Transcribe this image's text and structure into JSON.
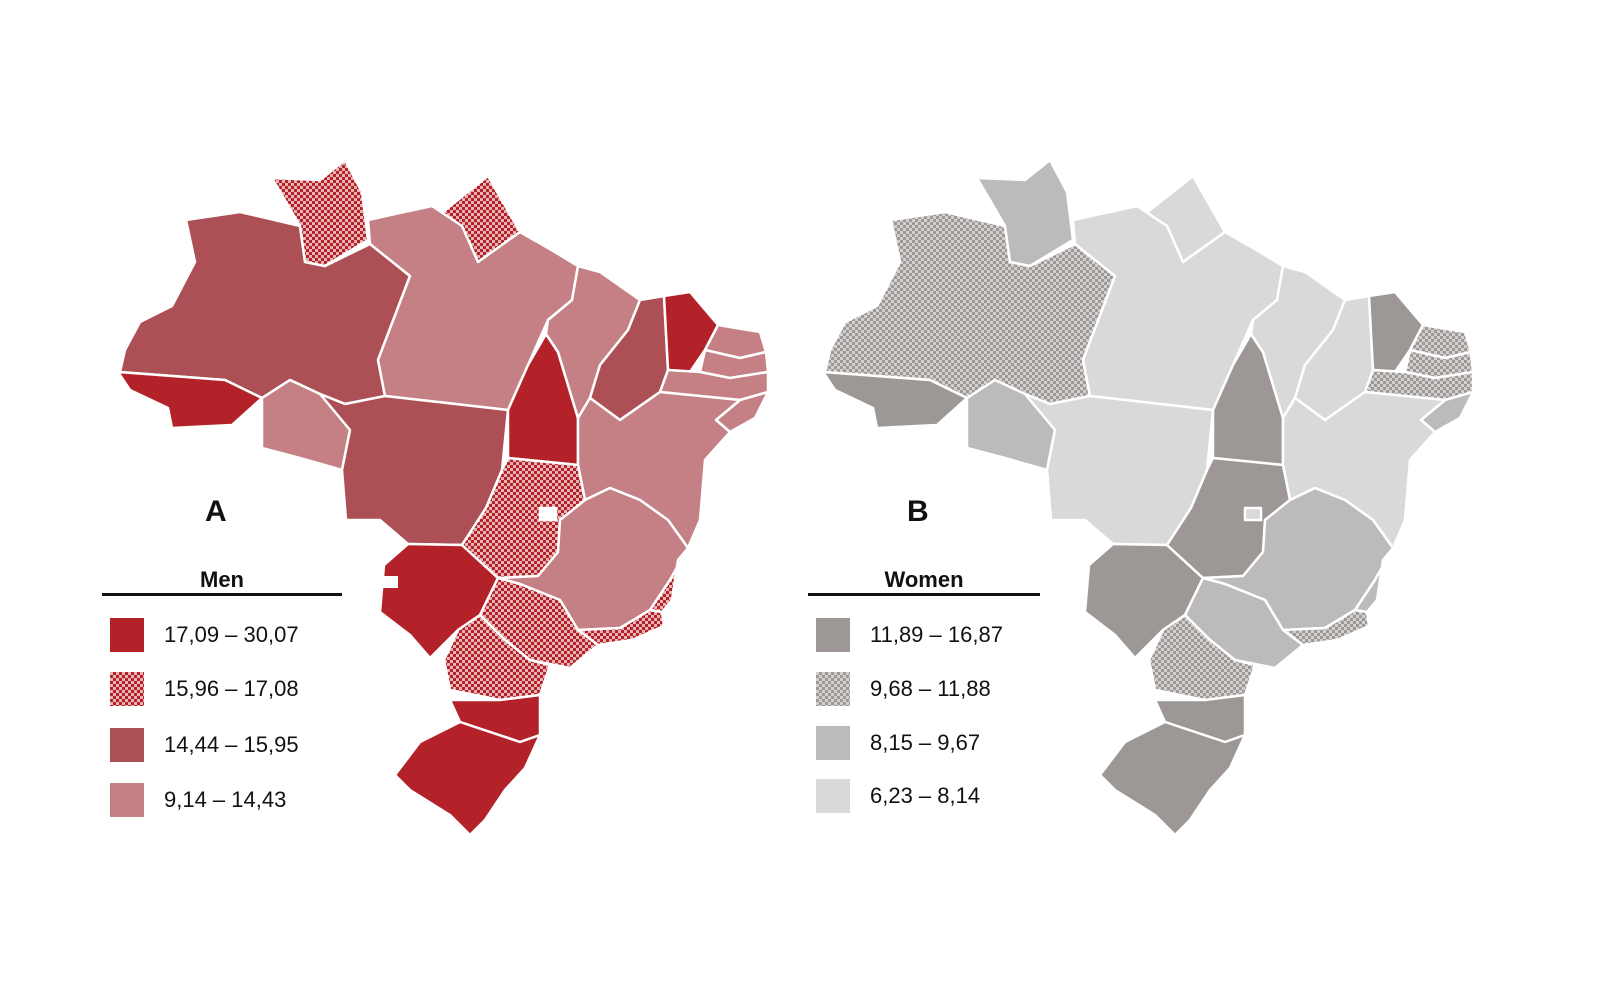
{
  "panels": [
    {
      "label": "A",
      "legend_title": "Men",
      "legend": [
        {
          "range": "17,09 – 30,07",
          "color": "#b22228",
          "pattern": "solid"
        },
        {
          "range": "15,96 – 17,08",
          "color": "#b22228",
          "pattern": "checker"
        },
        {
          "range": "14,44 – 15,95",
          "color": "#ac5055",
          "pattern": "solid"
        },
        {
          "range": "9,14 – 14,43",
          "color": "#c48084",
          "pattern": "solid"
        }
      ]
    },
    {
      "label": "B",
      "legend_title": "Women",
      "legend": [
        {
          "range": "11,89 – 16,87",
          "color": "#9d9895",
          "pattern": "solid"
        },
        {
          "range": "9,68 – 11,88",
          "color": "#a8a5a3",
          "pattern": "checker"
        },
        {
          "range": "8,15 – 9,67",
          "color": "#bdbbba",
          "pattern": "solid"
        },
        {
          "range": "6,23 – 8,14",
          "color": "#d9d9d9",
          "pattern": "solid"
        }
      ]
    }
  ]
}
